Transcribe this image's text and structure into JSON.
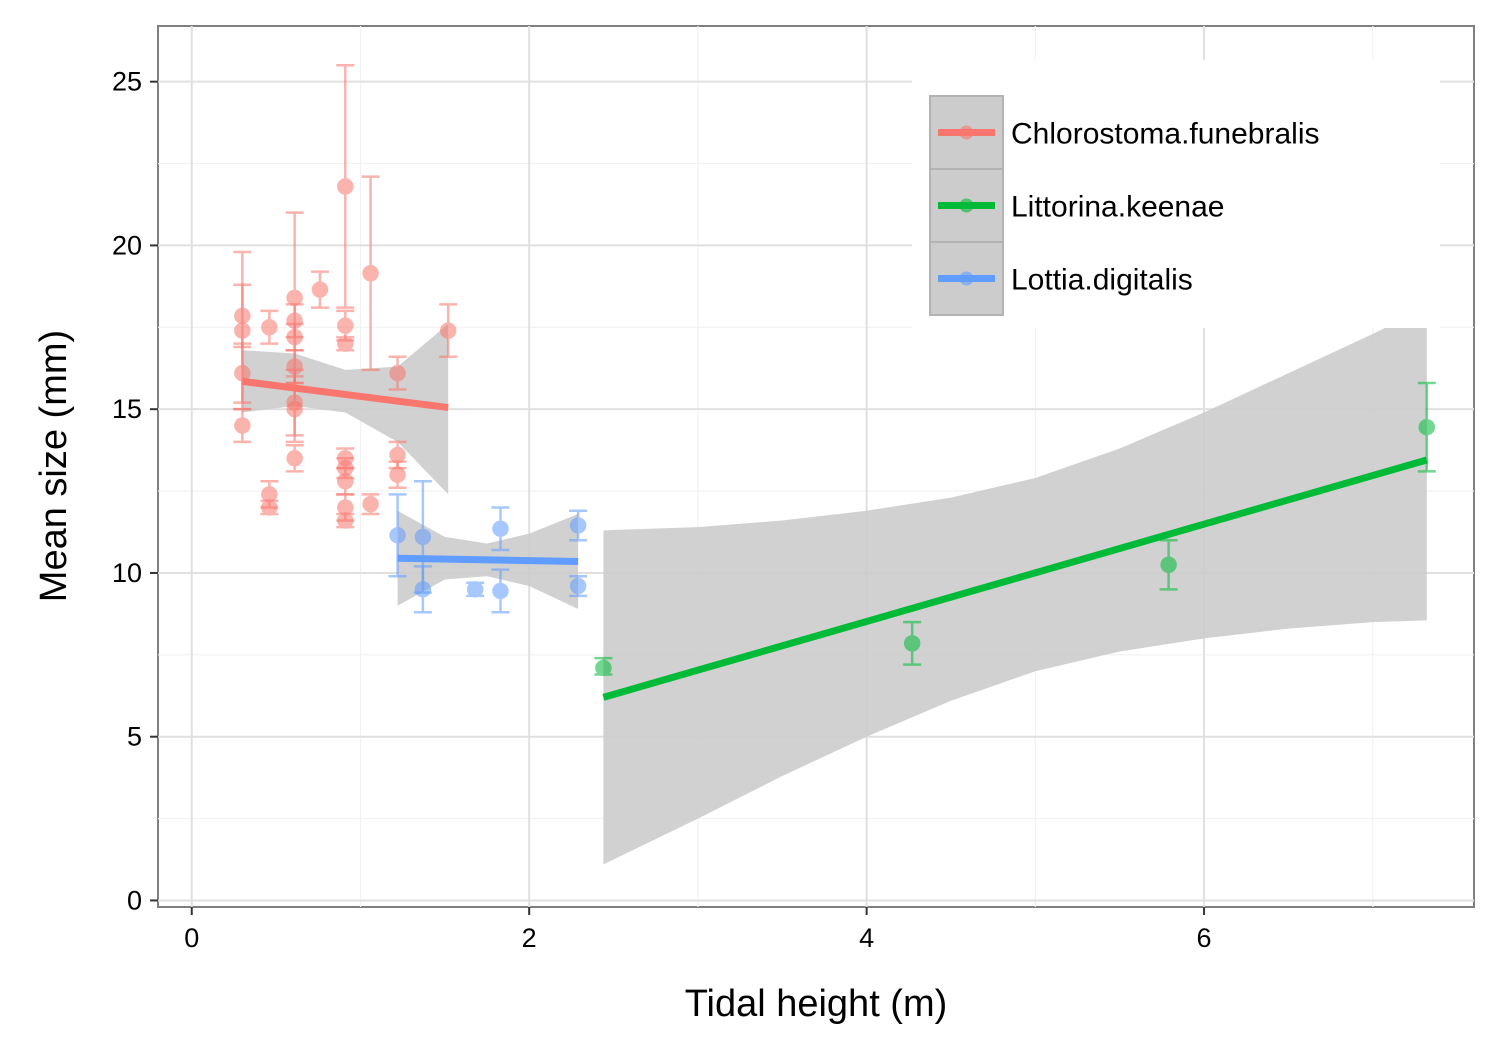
{
  "chart_data": {
    "type": "scatter",
    "title": "",
    "xlabel": "Tidal height (m)",
    "ylabel": "Mean size (mm)",
    "xlim": [
      -0.2,
      7.6
    ],
    "ylim": [
      -0.2,
      26.7
    ],
    "x_ticks": [
      0,
      2,
      4,
      6
    ],
    "x_tick_labels": [
      "0",
      "2",
      "4",
      "6"
    ],
    "y_ticks": [
      0,
      5,
      10,
      15,
      20,
      25
    ],
    "y_tick_labels": [
      "0",
      "5",
      "10",
      "15",
      "20",
      "25"
    ],
    "grid": true,
    "legend_position": "top-right",
    "confidence_band_color": "#cccccc",
    "series": [
      {
        "name": "Chlorostoma.funebralis",
        "color": "#f8766d",
        "points": [
          {
            "x": 0.3,
            "y": 17.85,
            "ymin": 16.9,
            "ymax": 18.8
          },
          {
            "x": 0.3,
            "y": 17.4,
            "ymin": 15.0,
            "ymax": 19.8
          },
          {
            "x": 0.3,
            "y": 16.1,
            "ymin": 15.2,
            "ymax": 17.0
          },
          {
            "x": 0.3,
            "y": 14.5,
            "ymin": 14.0,
            "ymax": 15.0
          },
          {
            "x": 0.46,
            "y": 17.5,
            "ymin": 17.0,
            "ymax": 18.0
          },
          {
            "x": 0.46,
            "y": 12.4,
            "ymin": 12.0,
            "ymax": 12.8
          },
          {
            "x": 0.46,
            "y": 12.0,
            "ymin": 11.8,
            "ymax": 12.2
          },
          {
            "x": 0.61,
            "y": 18.4,
            "ymin": 15.8,
            "ymax": 21.0
          },
          {
            "x": 0.61,
            "y": 17.7,
            "ymin": 17.2,
            "ymax": 18.2
          },
          {
            "x": 0.61,
            "y": 17.2,
            "ymin": 16.8,
            "ymax": 17.6
          },
          {
            "x": 0.61,
            "y": 16.3,
            "ymin": 15.8,
            "ymax": 16.8
          },
          {
            "x": 0.61,
            "y": 15.2,
            "ymin": 14.2,
            "ymax": 16.2
          },
          {
            "x": 0.61,
            "y": 15.0,
            "ymin": 14.0,
            "ymax": 16.0
          },
          {
            "x": 0.61,
            "y": 13.5,
            "ymin": 13.1,
            "ymax": 13.9
          },
          {
            "x": 0.76,
            "y": 18.65,
            "ymin": 18.1,
            "ymax": 19.2
          },
          {
            "x": 0.91,
            "y": 21.8,
            "ymin": 18.1,
            "ymax": 25.5
          },
          {
            "x": 0.91,
            "y": 17.55,
            "ymin": 17.1,
            "ymax": 18.0
          },
          {
            "x": 0.91,
            "y": 17.0,
            "ymin": 16.8,
            "ymax": 17.2
          },
          {
            "x": 0.91,
            "y": 13.5,
            "ymin": 13.2,
            "ymax": 13.8
          },
          {
            "x": 0.91,
            "y": 13.2,
            "ymin": 12.9,
            "ymax": 13.5
          },
          {
            "x": 0.91,
            "y": 12.8,
            "ymin": 12.4,
            "ymax": 13.2
          },
          {
            "x": 0.91,
            "y": 12.0,
            "ymin": 11.6,
            "ymax": 12.4
          },
          {
            "x": 0.91,
            "y": 11.6,
            "ymin": 11.4,
            "ymax": 11.8
          },
          {
            "x": 1.06,
            "y": 19.15,
            "ymin": 16.2,
            "ymax": 22.1
          },
          {
            "x": 1.06,
            "y": 12.1,
            "ymin": 11.8,
            "ymax": 12.4
          },
          {
            "x": 1.22,
            "y": 16.1,
            "ymin": 15.6,
            "ymax": 16.6
          },
          {
            "x": 1.22,
            "y": 13.6,
            "ymin": 13.2,
            "ymax": 14.0
          },
          {
            "x": 1.22,
            "y": 13.0,
            "ymin": 12.6,
            "ymax": 13.4
          },
          {
            "x": 1.52,
            "y": 17.4,
            "ymin": 16.6,
            "ymax": 18.2
          }
        ],
        "fit": {
          "x_start": 0.3,
          "y_start": 15.85,
          "x_end": 1.52,
          "y_end": 15.05
        },
        "band": {
          "x": [
            0.3,
            0.61,
            0.91,
            1.22,
            1.52
          ],
          "lower": [
            14.9,
            15.1,
            14.9,
            14.0,
            12.4
          ],
          "upper": [
            16.8,
            16.7,
            16.2,
            16.3,
            17.6
          ]
        }
      },
      {
        "name": "Littorina.keenae",
        "color": "#00ba38",
        "points": [
          {
            "x": 2.44,
            "y": 7.1,
            "ymin": 6.9,
            "ymax": 7.4
          },
          {
            "x": 4.27,
            "y": 7.85,
            "ymin": 7.2,
            "ymax": 8.5
          },
          {
            "x": 5.79,
            "y": 10.25,
            "ymin": 9.5,
            "ymax": 11.0
          },
          {
            "x": 7.32,
            "y": 14.45,
            "ymin": 13.1,
            "ymax": 15.8
          }
        ],
        "fit": {
          "x_start": 2.44,
          "y_start": 6.2,
          "x_end": 7.32,
          "y_end": 13.45
        },
        "band": {
          "x": [
            2.44,
            3.0,
            3.5,
            4.0,
            4.5,
            5.0,
            5.5,
            6.0,
            6.5,
            7.0,
            7.32
          ],
          "lower": [
            1.1,
            2.5,
            3.8,
            5.0,
            6.1,
            7.0,
            7.6,
            8.0,
            8.3,
            8.5,
            8.55
          ],
          "upper": [
            11.3,
            11.4,
            11.6,
            11.9,
            12.3,
            12.9,
            13.8,
            14.9,
            16.1,
            17.3,
            18.1
          ]
        }
      },
      {
        "name": "Lottia.digitalis",
        "color": "#619cff",
        "points": [
          {
            "x": 1.22,
            "y": 11.15,
            "ymin": 9.9,
            "ymax": 12.4
          },
          {
            "x": 1.37,
            "y": 11.1,
            "ymin": 9.4,
            "ymax": 12.8
          },
          {
            "x": 1.37,
            "y": 9.5,
            "ymin": 8.8,
            "ymax": 10.2
          },
          {
            "x": 1.68,
            "y": 9.5,
            "ymin": 9.3,
            "ymax": 9.7
          },
          {
            "x": 1.83,
            "y": 11.35,
            "ymin": 10.7,
            "ymax": 12.0
          },
          {
            "x": 1.83,
            "y": 9.45,
            "ymin": 8.8,
            "ymax": 10.1
          },
          {
            "x": 2.29,
            "y": 11.45,
            "ymin": 11.0,
            "ymax": 11.9
          },
          {
            "x": 2.29,
            "y": 9.6,
            "ymin": 9.3,
            "ymax": 9.9
          }
        ],
        "fit": {
          "x_start": 1.22,
          "y_start": 10.45,
          "x_end": 2.29,
          "y_end": 10.35
        },
        "band": {
          "x": [
            1.22,
            1.5,
            1.75,
            2.0,
            2.29
          ],
          "lower": [
            9.0,
            9.8,
            9.9,
            9.6,
            8.9
          ],
          "upper": [
            11.9,
            11.1,
            10.9,
            11.2,
            11.8
          ]
        }
      }
    ]
  }
}
